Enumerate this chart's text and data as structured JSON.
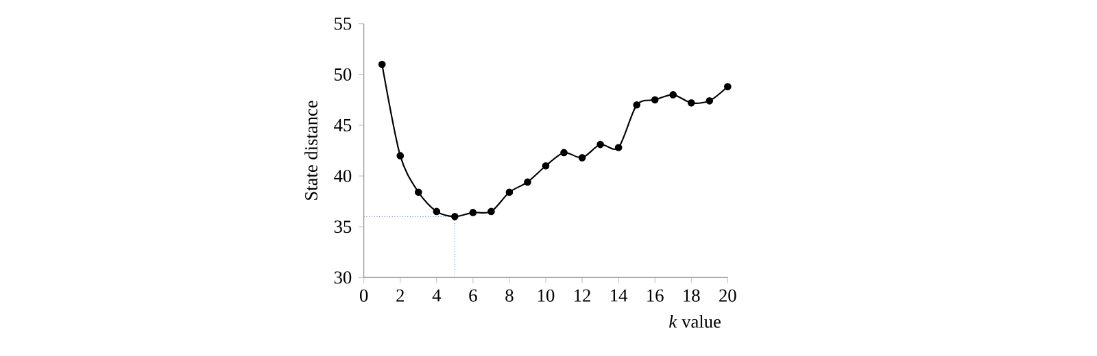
{
  "chart_data": {
    "type": "line",
    "xlabel": "*k* value",
    "ylabel": "State distance",
    "x": [
      1,
      2,
      3,
      4,
      5,
      6,
      7,
      8,
      9,
      10,
      11,
      12,
      13,
      14,
      15,
      16,
      17,
      18,
      19,
      20
    ],
    "series": [
      {
        "color": "#000000",
        "values": [
          51,
          42,
          38.4,
          36.5,
          36,
          36.4,
          36.5,
          38.4,
          39.4,
          41,
          42.3,
          41.8,
          43.1,
          42.8,
          47,
          47.5,
          48,
          47.2,
          47.4,
          48.8
        ]
      }
    ],
    "xlim": [
      0,
      20
    ],
    "ylim": [
      30,
      55
    ],
    "xticks": [
      0,
      2,
      4,
      6,
      8,
      10,
      12,
      14,
      16,
      18,
      20
    ],
    "yticks": [
      30,
      35,
      40,
      45,
      50,
      55
    ],
    "marker": "circle",
    "line_style": "solid",
    "grid": false,
    "ref_lines": [
      {
        "axis": "x",
        "value": 5,
        "color": "#5b8fc9",
        "line_style": "dotted"
      },
      {
        "axis": "y",
        "value": 36,
        "color": "#5b8fc9",
        "line_style": "dotted"
      }
    ]
  }
}
